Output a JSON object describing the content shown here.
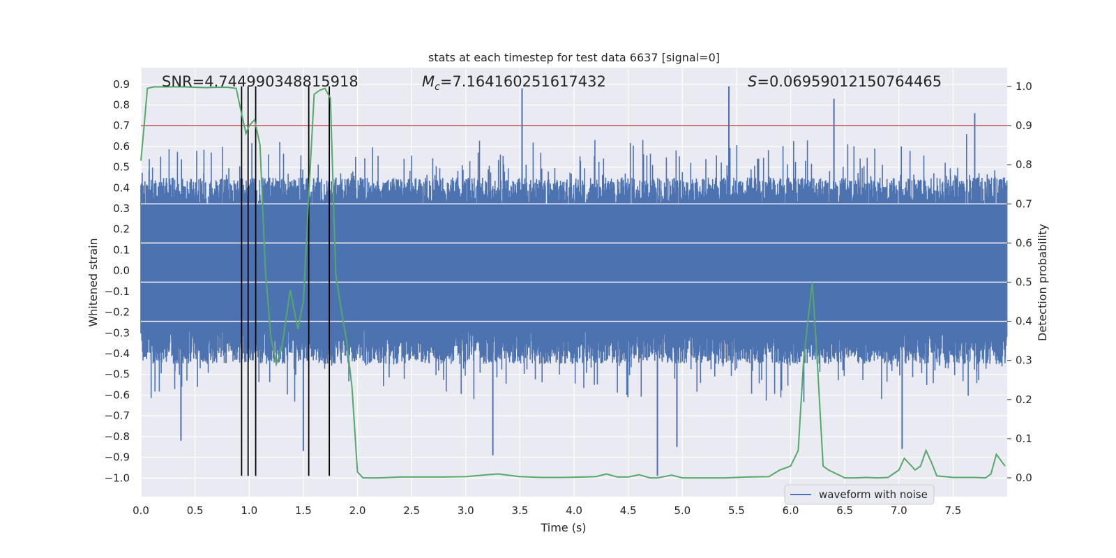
{
  "chart_data": {
    "type": "line",
    "title": "stats at each timestep for test data 6637 [signal=0]",
    "xlabel": "Time (s)",
    "ylabel": "Whitened strain",
    "ylabel_right": "Detection probability",
    "xlim": [
      0.0,
      8.0
    ],
    "ylim": [
      -1.09,
      0.98
    ],
    "ylim_right": [
      -0.048,
      1.048
    ],
    "xticks": [
      "0.0",
      "0.5",
      "1.0",
      "1.5",
      "2.0",
      "2.5",
      "3.0",
      "3.5",
      "4.0",
      "4.5",
      "5.0",
      "5.5",
      "6.0",
      "6.5",
      "7.0",
      "7.5"
    ],
    "yticks": [
      "0.9",
      "0.8",
      "0.7",
      "0.6",
      "0.5",
      "0.4",
      "0.3",
      "0.2",
      "0.1",
      "0.0",
      "−0.1",
      "−0.2",
      "−0.3",
      "−0.4",
      "−0.5",
      "−0.6",
      "−0.7",
      "−0.8",
      "−0.9",
      "−1.0"
    ],
    "yticks_right": [
      "1.0",
      "0.9",
      "0.8",
      "0.7",
      "0.6",
      "0.5",
      "0.4",
      "0.3",
      "0.2",
      "0.1",
      "0.0"
    ],
    "annotations": {
      "snr": "SNR=4.744990348815918",
      "mc_symbol": "M",
      "mc_sub": "c",
      "mc_value": "=7.164160251617432",
      "s_symbol": "S",
      "s_value": "=0.06959012150764465"
    },
    "threshold": {
      "value": 0.9,
      "axis": "right",
      "color": "#c44e52"
    },
    "vertical_lines_x": [
      0.93,
      0.99,
      1.06,
      1.55,
      1.74
    ],
    "series": [
      {
        "name": "waveform with noise",
        "axis": "left",
        "color": "#4c72b0",
        "kind": "noise",
        "band_typical": [
          -0.45,
          0.45
        ],
        "extreme_spikes": [
          {
            "x": 0.37,
            "y": -0.82
          },
          {
            "x": 1.5,
            "y": -0.87
          },
          {
            "x": 3.52,
            "y": 0.88
          },
          {
            "x": 3.25,
            "y": -0.89
          },
          {
            "x": 4.77,
            "y": -0.99
          },
          {
            "x": 4.95,
            "y": -0.85
          },
          {
            "x": 5.43,
            "y": 0.89
          },
          {
            "x": 6.4,
            "y": 0.83
          },
          {
            "x": 7.03,
            "y": -0.86
          },
          {
            "x": 7.7,
            "y": 0.76
          }
        ]
      },
      {
        "name": "detection probability",
        "axis": "right",
        "color": "#55a868",
        "kind": "line",
        "x": [
          0.0,
          0.03,
          0.06,
          0.12,
          0.2,
          0.3,
          0.4,
          0.5,
          0.6,
          0.7,
          0.8,
          0.88,
          0.93,
          0.97,
          1.0,
          1.05,
          1.1,
          1.15,
          1.2,
          1.25,
          1.3,
          1.38,
          1.45,
          1.5,
          1.55,
          1.6,
          1.65,
          1.7,
          1.75,
          1.8,
          1.85,
          1.9,
          1.95,
          2.0,
          2.05,
          2.2,
          2.4,
          2.6,
          2.8,
          3.0,
          3.2,
          3.3,
          3.5,
          3.7,
          3.9,
          4.1,
          4.2,
          4.3,
          4.4,
          4.5,
          4.6,
          4.7,
          4.77,
          4.85,
          4.9,
          5.0,
          5.2,
          5.4,
          5.6,
          5.8,
          5.9,
          6.0,
          6.07,
          6.12,
          6.16,
          6.2,
          6.25,
          6.3,
          6.35,
          6.5,
          6.6,
          6.7,
          6.8,
          6.9,
          7.0,
          7.05,
          7.15,
          7.2,
          7.25,
          7.3,
          7.35,
          7.5,
          7.7,
          7.8,
          7.85,
          7.9,
          7.98
        ],
        "y": [
          0.81,
          0.9,
          0.995,
          0.999,
          0.999,
          0.999,
          0.999,
          0.998,
          0.997,
          0.998,
          0.998,
          0.995,
          0.93,
          0.88,
          0.9,
          0.915,
          0.85,
          0.53,
          0.36,
          0.29,
          0.33,
          0.48,
          0.38,
          0.45,
          0.72,
          0.98,
          0.99,
          0.995,
          0.97,
          0.52,
          0.43,
          0.35,
          0.23,
          0.015,
          0.0,
          0.0,
          0.002,
          0.002,
          0.002,
          0.003,
          0.008,
          0.01,
          0.003,
          0.001,
          0.001,
          0.002,
          0.003,
          0.01,
          0.002,
          0.002,
          0.008,
          0.0,
          0.0,
          0.004,
          0.007,
          0.0,
          0.0,
          0.0,
          0.002,
          0.003,
          0.02,
          0.03,
          0.07,
          0.3,
          0.4,
          0.5,
          0.28,
          0.03,
          0.02,
          0.0,
          0.0,
          0.001,
          0.0,
          0.001,
          0.02,
          0.05,
          0.02,
          0.03,
          0.07,
          0.04,
          0.005,
          0.001,
          0.001,
          0.0,
          0.01,
          0.06,
          0.03
        ]
      }
    ]
  }
}
